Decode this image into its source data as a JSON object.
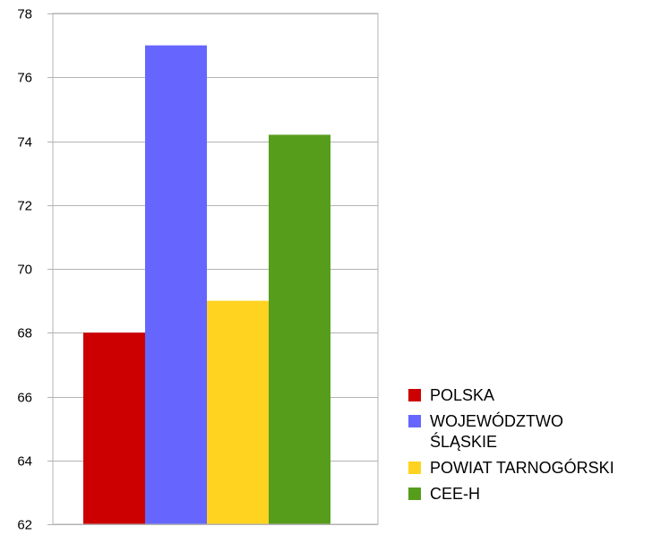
{
  "chart_data": {
    "type": "bar",
    "title": "",
    "xlabel": "",
    "ylabel": "",
    "categories": [
      ""
    ],
    "ylim": [
      62,
      78
    ],
    "yticks": [
      62,
      64,
      66,
      68,
      70,
      72,
      74,
      76,
      78
    ],
    "grid": true,
    "legend_position": "right-bottom",
    "series": [
      {
        "name": "POLSKA",
        "values": [
          68.0
        ],
        "color": "#cc0000"
      },
      {
        "name": "WOJEWÓDZTWO\nŚLĄSKIE",
        "values": [
          77.0
        ],
        "color": "#6666ff"
      },
      {
        "name": "POWIAT TARNOGÓRSKI",
        "values": [
          69.0
        ],
        "color": "#ffd320"
      },
      {
        "name": "CEE-H",
        "values": [
          74.2
        ],
        "color": "#579d1c"
      }
    ]
  }
}
